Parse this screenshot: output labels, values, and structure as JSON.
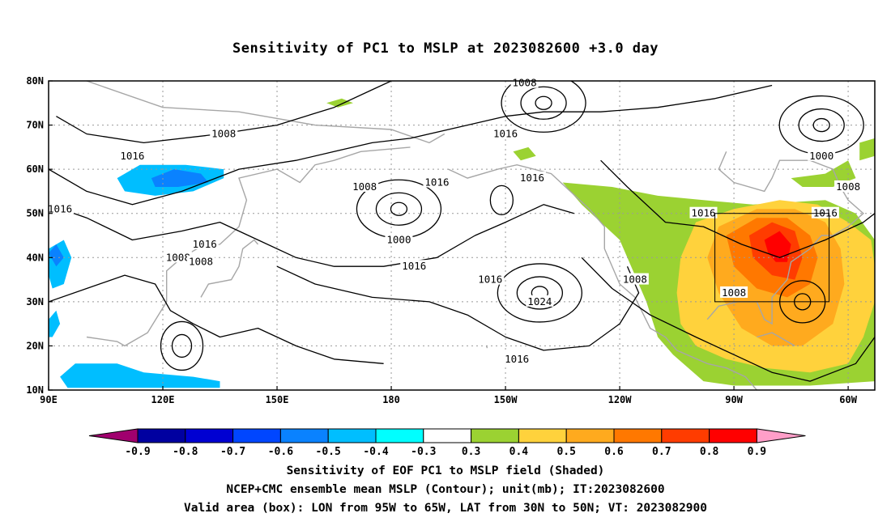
{
  "title": "Sensitivity of PC1 to MSLP at 2023082600 +3.0 day",
  "axes": {
    "lon_ticks": [
      "90E",
      "120E",
      "150E",
      "180",
      "150W",
      "120W",
      "90W",
      "60W"
    ],
    "lat_ticks": [
      "80N",
      "70N",
      "60N",
      "50N",
      "40N",
      "30N",
      "20N",
      "10N"
    ]
  },
  "contour_labels": [
    {
      "text": "1008",
      "lon": -145,
      "lat": 79.5
    },
    {
      "text": "1008",
      "lon": 136,
      "lat": 68
    },
    {
      "text": "1016",
      "lon": 112,
      "lat": 63
    },
    {
      "text": "1016",
      "lon": -150,
      "lat": 68
    },
    {
      "text": "1016",
      "lon": -168,
      "lat": 57
    },
    {
      "text": "1016",
      "lon": -143,
      "lat": 58
    },
    {
      "text": "1008",
      "lon": 173,
      "lat": 56
    },
    {
      "text": "1000",
      "lon": -178,
      "lat": 44
    },
    {
      "text": "1016",
      "lon": 93,
      "lat": 51
    },
    {
      "text": "1016",
      "lon": 131,
      "lat": 43
    },
    {
      "text": "1008",
      "lon": 124,
      "lat": 40
    },
    {
      "text": "1008",
      "lon": 130,
      "lat": 39
    },
    {
      "text": "1016",
      "lon": -174,
      "lat": 38
    },
    {
      "text": "1016",
      "lon": -154,
      "lat": 35
    },
    {
      "text": "1024",
      "lon": -141,
      "lat": 30
    },
    {
      "text": "1016",
      "lon": -147,
      "lat": 17
    },
    {
      "text": "1008",
      "lon": -116,
      "lat": 35
    },
    {
      "text": "1000",
      "lon": -67,
      "lat": 63
    },
    {
      "text": "1008",
      "lon": -60,
      "lat": 56
    },
    {
      "text": "1016",
      "lon": -98,
      "lat": 50
    },
    {
      "text": "1016",
      "lon": -66,
      "lat": 50
    },
    {
      "text": "1008",
      "lon": -90,
      "lat": 32
    }
  ],
  "colorbar": {
    "labels": [
      "-0.9",
      "-0.8",
      "-0.7",
      "-0.6",
      "-0.5",
      "-0.4",
      "-0.3",
      "0.3",
      "0.4",
      "0.5",
      "0.6",
      "0.7",
      "0.8",
      "0.9"
    ],
    "colors": [
      "#a0006e",
      "#0000a0",
      "#0000d2",
      "#0046ff",
      "#0a82ff",
      "#00beff",
      "#00ffff",
      "#ffffff",
      "#9bd232",
      "#ffd23c",
      "#ffaa1e",
      "#ff7800",
      "#ff3c00",
      "#ff0000",
      "#ff9ec8"
    ]
  },
  "valid_area": {
    "lon_min": -95,
    "lon_max": -65,
    "lat_min": 30,
    "lat_max": 50
  },
  "highs_lows": [
    {
      "label": "1000",
      "lon": -178,
      "lat": 51,
      "kind": "low"
    },
    {
      "label": "1024",
      "lon": -141,
      "lat": 32,
      "kind": "high"
    },
    {
      "label": "1000",
      "lon": -67,
      "lat": 70,
      "kind": "low"
    },
    {
      "label": "1008",
      "lon": -140,
      "lat": 75,
      "kind": "low"
    }
  ],
  "captions": {
    "line1": "Sensitivity of EOF PC1 to MSLP field (Shaded)",
    "line2": "NCEP+CMC ensemble mean MSLP (Contour); unit(mb); IT:2023082600",
    "line3": "Valid area (box): LON from 95W to 65W, LAT from 30N to 50N; VT: 2023082900"
  }
}
